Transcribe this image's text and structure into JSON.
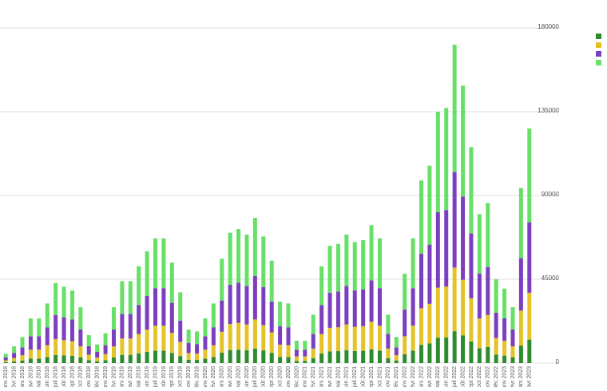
{
  "chart_data": {
    "type": "stacked-bar",
    "categories": [
      "janv 2018",
      "févr 2018",
      "mars 2018",
      "avr 2018",
      "mai 2018",
      "juin 2018",
      "juil 2018",
      "août 2018",
      "sept 2018",
      "oct 2018",
      "nov 2018",
      "déc 2018",
      "janv 2019",
      "févr 2019",
      "mars 2019",
      "avr 2019",
      "mai 2019",
      "juin 2019",
      "juil 2019",
      "août 2019",
      "sept 2019",
      "oct 2019",
      "nov 2019",
      "déc 2019",
      "janv 2020",
      "févr 2020",
      "mars 2020",
      "avr 2020",
      "mai 2020",
      "juin 2020",
      "juil 2020",
      "août 2020",
      "sept 2020",
      "oct 2020",
      "nov 2020",
      "déc 2020",
      "janv 2021",
      "févr 2021",
      "mars 2021",
      "avr 2021",
      "mai 2021",
      "juin 2021",
      "juil 2021",
      "août 2021",
      "sept 2021",
      "oct 2021",
      "nov 2021",
      "déc 2021",
      "janv 2022",
      "févr 2022",
      "mars 2022",
      "avr 2022",
      "mai 2022",
      "juin 2022",
      "juil 2022",
      "août 2022",
      "sept 2022",
      "oct 2022",
      "nov 2022",
      "déc 2022",
      "janv 2023",
      "févr 2023",
      "mars 2023",
      "avr 2023"
    ],
    "series": [
      {
        "color": "#2e8b2e",
        "values": [
          500,
          900,
          1400,
          2400,
          2400,
          3200,
          4300,
          4100,
          3900,
          3000,
          1500,
          1000,
          1600,
          3000,
          4400,
          4400,
          5200,
          6000,
          6700,
          6700,
          5400,
          3800,
          1800,
          1700,
          2400,
          3200,
          5600,
          7000,
          7200,
          6900,
          7800,
          6800,
          5500,
          3300,
          3200,
          1200,
          1200,
          2600,
          5200,
          6300,
          6400,
          6900,
          6500,
          6600,
          7400,
          6700,
          2600,
          1400,
          4800,
          6700,
          9800,
          10600,
          13500,
          13700,
          17100,
          14900,
          11600,
          8000,
          8600,
          4500,
          4000,
          3000,
          9400,
          12600
        ]
      },
      {
        "color": "#e6c229",
        "values": [
          1000,
          1800,
          2800,
          4800,
          4800,
          6400,
          8600,
          8200,
          7800,
          6000,
          3000,
          2000,
          3200,
          6000,
          8800,
          8800,
          10400,
          12000,
          13400,
          13400,
          10800,
          7600,
          3600,
          3400,
          4800,
          6400,
          11200,
          14000,
          14400,
          13800,
          15600,
          13600,
          11000,
          6600,
          6400,
          2400,
          2400,
          5200,
          10400,
          12600,
          12800,
          13800,
          13000,
          13200,
          14800,
          13400,
          5200,
          2800,
          9600,
          13400,
          19600,
          21200,
          27000,
          27400,
          34200,
          29800,
          23200,
          16000,
          17200,
          9000,
          8000,
          6000,
          18800,
          25200
        ]
      },
      {
        "color": "#7b3fbf",
        "values": [
          1500,
          2700,
          4200,
          7200,
          7200,
          9600,
          12900,
          12300,
          11700,
          9000,
          4500,
          3000,
          4800,
          9000,
          13200,
          13200,
          15600,
          18000,
          20100,
          20100,
          16200,
          11400,
          5400,
          5100,
          7200,
          9600,
          16800,
          21000,
          21600,
          20700,
          23400,
          20400,
          16500,
          9900,
          9600,
          3600,
          3600,
          7800,
          15600,
          18900,
          19200,
          20700,
          19500,
          19800,
          22200,
          20100,
          7800,
          4200,
          14400,
          20100,
          29400,
          31800,
          40500,
          41100,
          51300,
          44700,
          34800,
          24000,
          25800,
          13500,
          12000,
          9000,
          28200,
          37800
        ]
      },
      {
        "color": "#66e066",
        "values": [
          2000,
          3600,
          5600,
          9600,
          9600,
          12800,
          17200,
          16400,
          15600,
          12000,
          6000,
          4000,
          6400,
          12000,
          17600,
          17600,
          20800,
          24000,
          26800,
          26800,
          21600,
          15200,
          7200,
          6800,
          9600,
          12800,
          22400,
          28000,
          28800,
          27600,
          31200,
          27200,
          22000,
          13200,
          12800,
          4800,
          4800,
          10400,
          20800,
          25200,
          25600,
          27600,
          26000,
          26400,
          29600,
          26800,
          10400,
          5600,
          19200,
          26800,
          39200,
          42400,
          54000,
          54800,
          68400,
          59600,
          46400,
          32000,
          34400,
          18000,
          16000,
          12000,
          37600,
          50400
        ]
      }
    ],
    "ylim": [
      0,
      180000
    ],
    "yticks": [
      0,
      45000,
      90000,
      135000,
      180000
    ],
    "grid": true
  }
}
